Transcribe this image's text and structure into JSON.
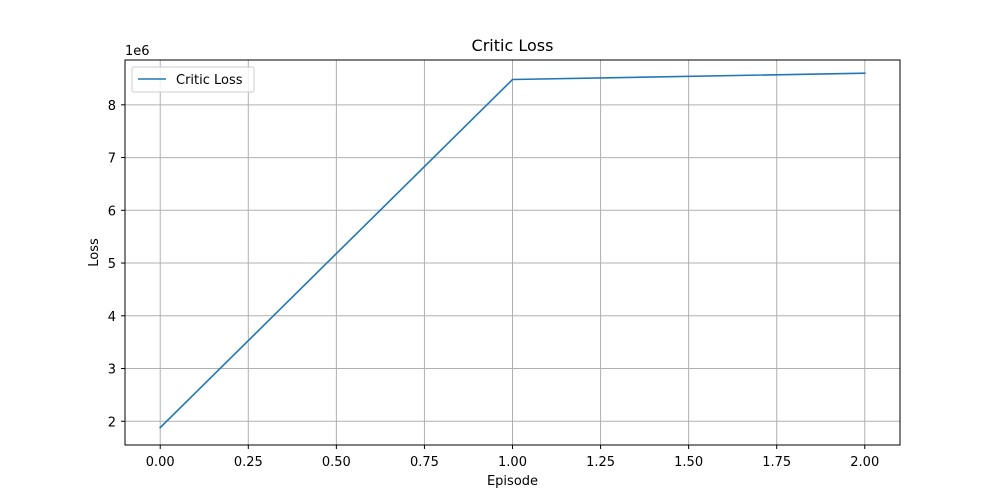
{
  "chart_data": {
    "type": "line",
    "title": "Critic Loss",
    "xlabel": "Episode",
    "ylabel": "Loss",
    "y_offset_label": "1e6",
    "xlim": [
      -0.1,
      2.1
    ],
    "ylim": [
      1.55,
      8.85
    ],
    "x_ticks": [
      0.0,
      0.25,
      0.5,
      0.75,
      1.0,
      1.25,
      1.5,
      1.75,
      2.0
    ],
    "x_tick_labels": [
      "0.00",
      "0.25",
      "0.50",
      "0.75",
      "1.00",
      "1.25",
      "1.50",
      "1.75",
      "2.00"
    ],
    "y_ticks": [
      2,
      3,
      4,
      5,
      6,
      7,
      8
    ],
    "y_tick_labels": [
      "2",
      "3",
      "4",
      "5",
      "6",
      "7",
      "8"
    ],
    "grid": true,
    "legend": {
      "position": "top-left"
    },
    "series": [
      {
        "name": "Critic Loss",
        "color": "#1f77b4",
        "x": [
          0,
          1,
          2
        ],
        "y": [
          1.88,
          8.48,
          8.6
        ]
      }
    ]
  }
}
